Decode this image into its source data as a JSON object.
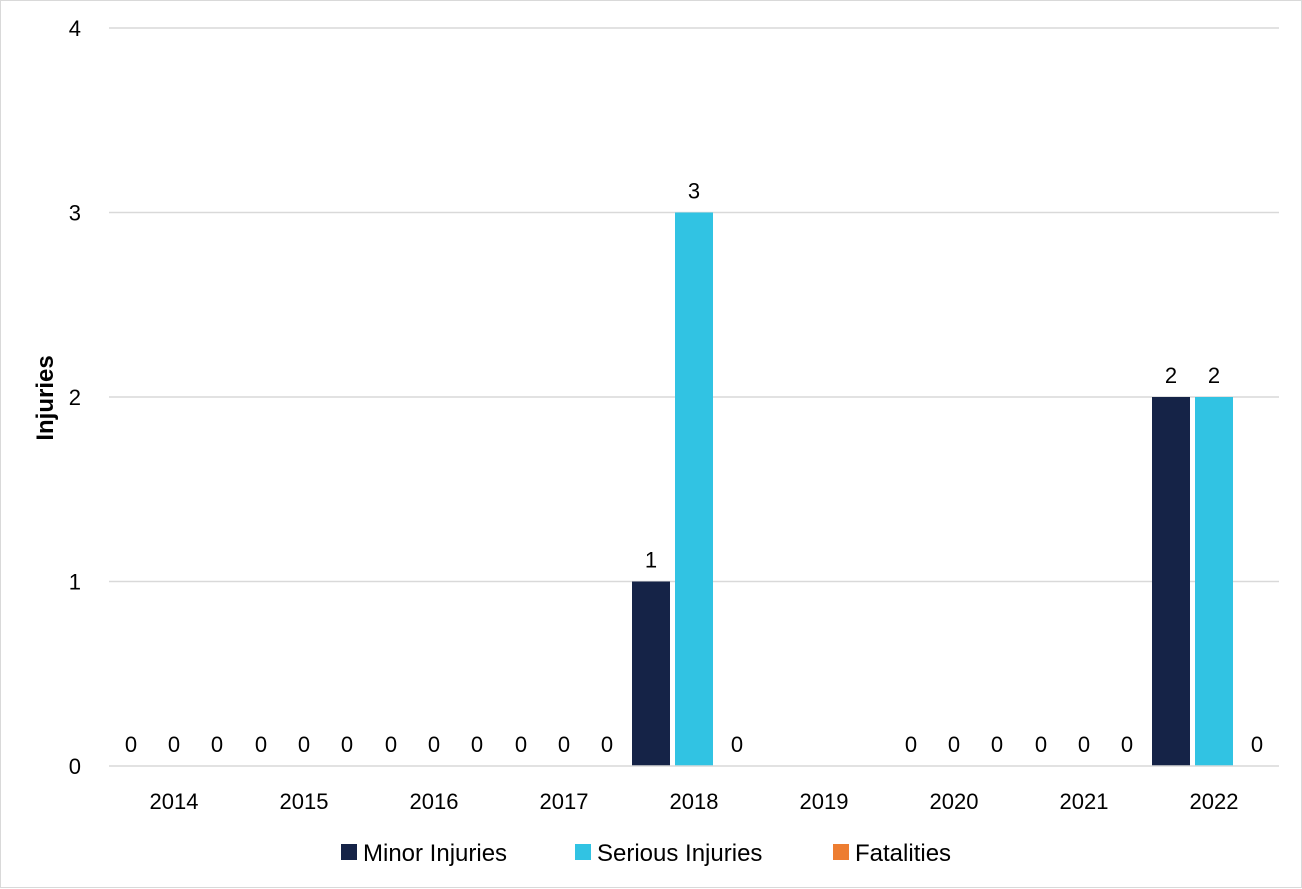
{
  "chart_data": {
    "type": "bar",
    "ylabel": "Injuries",
    "ylim": [
      0,
      4
    ],
    "yticks": [
      "0",
      "1",
      "2",
      "3",
      "4"
    ],
    "grid": true,
    "legend_position": "bottom",
    "categories": [
      "2014",
      "2015",
      "2016",
      "2017",
      "2018",
      "2019",
      "2020",
      "2021",
      "2022"
    ],
    "series": [
      {
        "name": "Minor Injuries",
        "color": "#152347",
        "values": [
          0,
          0,
          0,
          0,
          1,
          null,
          0,
          0,
          2
        ]
      },
      {
        "name": "Serious Injuries",
        "color": "#31c3e3",
        "values": [
          0,
          0,
          0,
          0,
          3,
          null,
          0,
          0,
          2
        ]
      },
      {
        "name": "Fatalities",
        "color": "#ed7d31",
        "values": [
          0,
          0,
          0,
          0,
          0,
          null,
          0,
          0,
          0
        ]
      }
    ]
  }
}
